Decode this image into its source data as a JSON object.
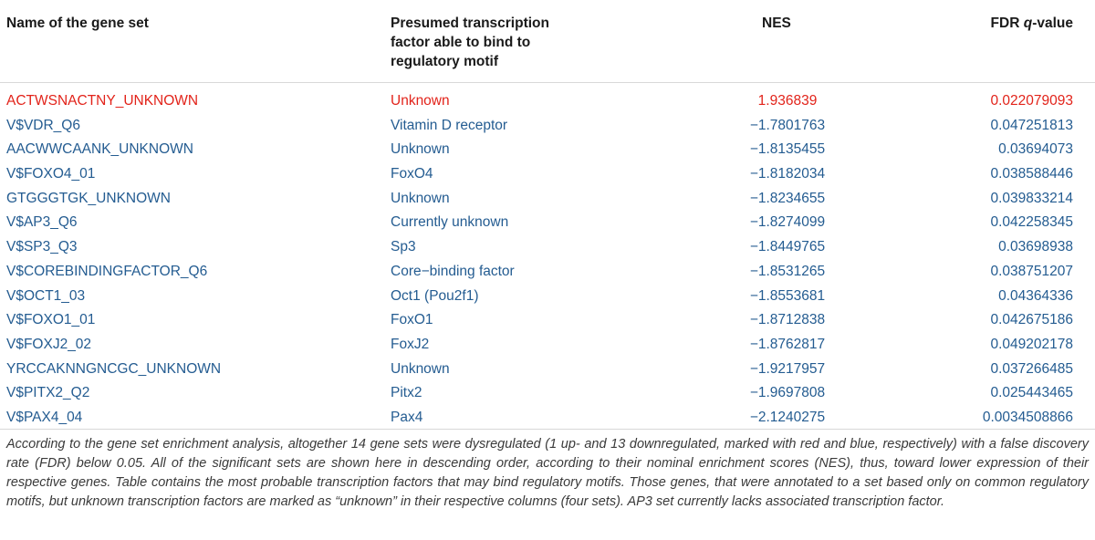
{
  "table": {
    "headers": {
      "name": "Name of the gene set",
      "tf": "Presumed transcription factor able to bind to regulatory motif",
      "nes": "NES",
      "fdr_prefix": "FDR ",
      "fdr_q": "q",
      "fdr_suffix": "-value"
    },
    "rows": [
      {
        "name": "ACTWSNACTNY_UNKNOWN",
        "tf": "Unknown",
        "nes": "1.936839",
        "fdr": "0.022079093",
        "direction": "up"
      },
      {
        "name": "V$VDR_Q6",
        "tf": "Vitamin D receptor",
        "nes": "−1.7801763",
        "fdr": "0.047251813",
        "direction": "down"
      },
      {
        "name": "AACWWCAANK_UNKNOWN",
        "tf": "Unknown",
        "nes": "−1.8135455",
        "fdr": "0.03694073",
        "direction": "down"
      },
      {
        "name": "V$FOXO4_01",
        "tf": "FoxO4",
        "nes": "−1.8182034",
        "fdr": "0.038588446",
        "direction": "down"
      },
      {
        "name": "GTGGGTGK_UNKNOWN",
        "tf": "Unknown",
        "nes": "−1.8234655",
        "fdr": "0.039833214",
        "direction": "down"
      },
      {
        "name": "V$AP3_Q6",
        "tf": "Currently unknown",
        "nes": "−1.8274099",
        "fdr": "0.042258345",
        "direction": "down"
      },
      {
        "name": "V$SP3_Q3",
        "tf": "Sp3",
        "nes": "−1.8449765",
        "fdr": "0.03698938",
        "direction": "down"
      },
      {
        "name": "V$COREBINDINGFACTOR_Q6",
        "tf": "Core−binding factor",
        "nes": "−1.8531265",
        "fdr": "0.038751207",
        "direction": "down"
      },
      {
        "name": "V$OCT1_03",
        "tf": "Oct1 (Pou2f1)",
        "nes": "−1.8553681",
        "fdr": "0.04364336",
        "direction": "down"
      },
      {
        "name": "V$FOXO1_01",
        "tf": "FoxO1",
        "nes": "−1.8712838",
        "fdr": "0.042675186",
        "direction": "down"
      },
      {
        "name": "V$FOXJ2_02",
        "tf": "FoxJ2",
        "nes": "−1.8762817",
        "fdr": "0.049202178",
        "direction": "down"
      },
      {
        "name": "YRCCAKNNGNCGC_UNKNOWN",
        "tf": "Unknown",
        "nes": "−1.9217957",
        "fdr": "0.037266485",
        "direction": "down"
      },
      {
        "name": "V$PITX2_Q2",
        "tf": "Pitx2",
        "nes": "−1.9697808",
        "fdr": "0.025443465",
        "direction": "down"
      },
      {
        "name": "V$PAX4_04",
        "tf": "Pax4",
        "nes": "−2.1240275",
        "fdr": "0.0034508866",
        "direction": "down"
      }
    ]
  },
  "caption": "According to the gene set enrichment analysis, altogether 14 gene sets were dysregulated (1 up- and 13 downregulated, marked with red and blue, respectively) with a false discovery rate (FDR) below 0.05. All of the significant sets are shown here in descending order, according to their nominal enrichment scores (NES), thus, toward lower expression of their respective genes. Table contains the most probable transcription factors that may bind regulatory motifs. Those genes, that were annotated to a set based only on common regulatory motifs, but unknown transcription factors are marked as “unknown” in their respective columns (four sets). AP3 set currently lacks associated transcription factor.",
  "colors": {
    "up": "#e2231a",
    "down": "#245c91"
  }
}
